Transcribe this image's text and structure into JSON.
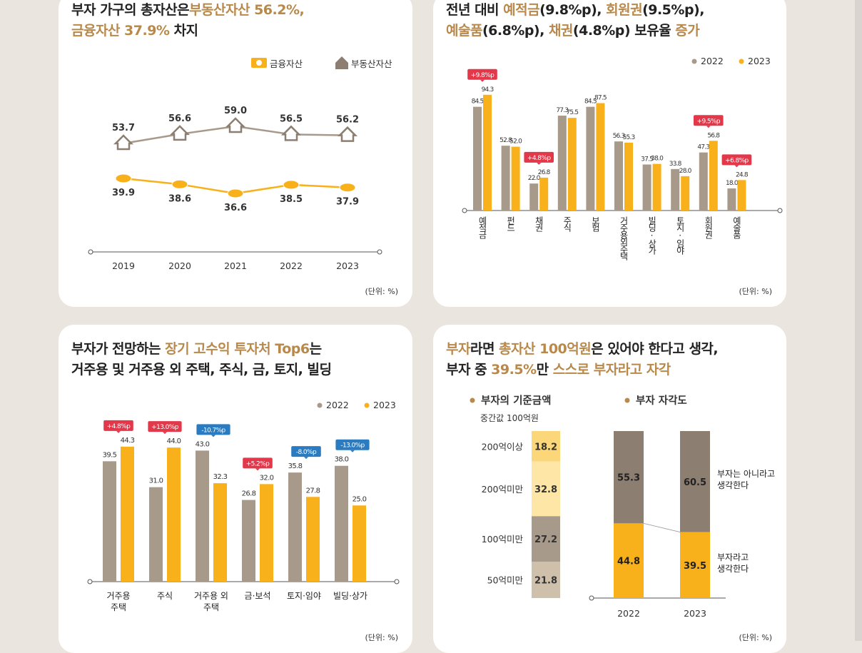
{
  "colors": {
    "gray": "#a89a8a",
    "orange": "#f8b01b",
    "darkgray": "#8c7e70",
    "highlight": "#b8894a",
    "up_badge": "#e2384a",
    "down_badge": "#2a7bc0"
  },
  "chart_data": [
    {
      "type": "line",
      "title": [
        [
          {
            "t": "부자 가구의 총자산은",
            "hl": false
          },
          {
            "t": "부동산자산 56.2%,",
            "hl": true
          }
        ],
        [
          {
            "t": "금융자산 37.9%",
            "hl": true
          },
          {
            "t": " 차지",
            "hl": false
          }
        ]
      ],
      "legend": [
        "금융자산",
        "부동산자산"
      ],
      "legend_icons": [
        "money-icon",
        "house-icon"
      ],
      "x": [
        "2019",
        "2020",
        "2021",
        "2022",
        "2023"
      ],
      "series": [
        {
          "name": "부동산자산",
          "values": [
            53.7,
            56.6,
            59.0,
            56.5,
            56.2
          ]
        },
        {
          "name": "금융자산",
          "values": [
            39.9,
            38.6,
            36.6,
            38.5,
            37.9
          ]
        }
      ],
      "unit": "(단위: %)"
    },
    {
      "type": "bar",
      "title": [
        [
          {
            "t": "전년 대비 ",
            "hl": false
          },
          {
            "t": "예적금",
            "hl": true
          },
          {
            "t": "(9.8%p), ",
            "hl": false
          },
          {
            "t": "회원권",
            "hl": true
          },
          {
            "t": "(9.5%p),",
            "hl": false
          }
        ],
        [
          {
            "t": "예술품",
            "hl": true
          },
          {
            "t": "(6.8%p), ",
            "hl": false
          },
          {
            "t": "채권",
            "hl": true
          },
          {
            "t": "(4.8%p) 보유율 ",
            "hl": false
          },
          {
            "t": "증가",
            "hl": true
          }
        ]
      ],
      "legend": [
        "2022",
        "2023"
      ],
      "categories": [
        "예적금",
        "펀드",
        "채권",
        "주식",
        "보험",
        "거주용외주택",
        "빌딩·상가",
        "토지·임야",
        "회원권",
        "예술품"
      ],
      "series": [
        {
          "name": "2022",
          "values": [
            84.5,
            52.8,
            22.0,
            77.3,
            84.5,
            56.3,
            37.5,
            33.8,
            47.3,
            18.0
          ]
        },
        {
          "name": "2023",
          "values": [
            94.3,
            52.0,
            26.8,
            75.5,
            87.5,
            55.3,
            38.0,
            28.0,
            56.8,
            24.8
          ]
        }
      ],
      "badges": [
        "+9.8%p",
        "",
        "+4.8%p",
        "",
        "",
        "",
        "",
        "",
        "+9.5%p",
        "+6.8%p"
      ],
      "unit": "(단위: %)"
    },
    {
      "type": "bar",
      "title": [
        [
          {
            "t": "부자가 전망하는 ",
            "hl": false
          },
          {
            "t": "장기 고수익 투자처 Top6",
            "hl": true
          },
          {
            "t": "는",
            "hl": false
          }
        ],
        [
          {
            "t": "거주용 및 거주용 외 주택, 주식, 금, 토지, 빌딩",
            "hl": false
          }
        ]
      ],
      "legend": [
        "2022",
        "2023"
      ],
      "categories": [
        "거주용\n주택",
        "주식",
        "거주용 외\n주택",
        "금·보석",
        "토지·임야",
        "빌딩·상가"
      ],
      "series": [
        {
          "name": "2022",
          "values": [
            39.5,
            31.0,
            43.0,
            26.8,
            35.8,
            38.0
          ]
        },
        {
          "name": "2023",
          "values": [
            44.3,
            44.0,
            32.3,
            32.0,
            27.8,
            25.0
          ]
        }
      ],
      "badges": [
        "+4.8%p",
        "+13.0%p",
        "-10.7%p",
        "+5.2%p",
        "-8.0%p",
        "-13.0%p"
      ],
      "unit": "(단위: %)"
    },
    {
      "type": "bar",
      "title": [
        [
          {
            "t": "부자",
            "hl": true
          },
          {
            "t": "라면 ",
            "hl": false
          },
          {
            "t": "총자산 100억원",
            "hl": true
          },
          {
            "t": "은 있어야 한다고 생각,",
            "hl": false
          }
        ],
        [
          {
            "t": "부자 중 ",
            "hl": false
          },
          {
            "t": "39.5%",
            "hl": true
          },
          {
            "t": "만 ",
            "hl": false
          },
          {
            "t": "스스로 부자라고 자각",
            "hl": true
          }
        ]
      ],
      "left": {
        "heading": "부자의 기준금액",
        "sub": "중간값 100억원",
        "categories": [
          "200억이상",
          "200억미만",
          "100억미만",
          "50억미만"
        ],
        "values": [
          18.2,
          32.8,
          27.2,
          21.8
        ],
        "colors": [
          "#fbd77a",
          "#fde6a6",
          "#a89a8a",
          "#cfc0ab"
        ]
      },
      "right": {
        "heading": "부자 자각도",
        "x": [
          "2022",
          "2023"
        ],
        "series": [
          {
            "name": "부자는 아니라고\n생각한다",
            "values": [
              55.3,
              60.5
            ]
          },
          {
            "name": "부자라고\n생각한다",
            "values": [
              44.8,
              39.5
            ]
          }
        ]
      },
      "unit": "(단위: %)"
    }
  ]
}
